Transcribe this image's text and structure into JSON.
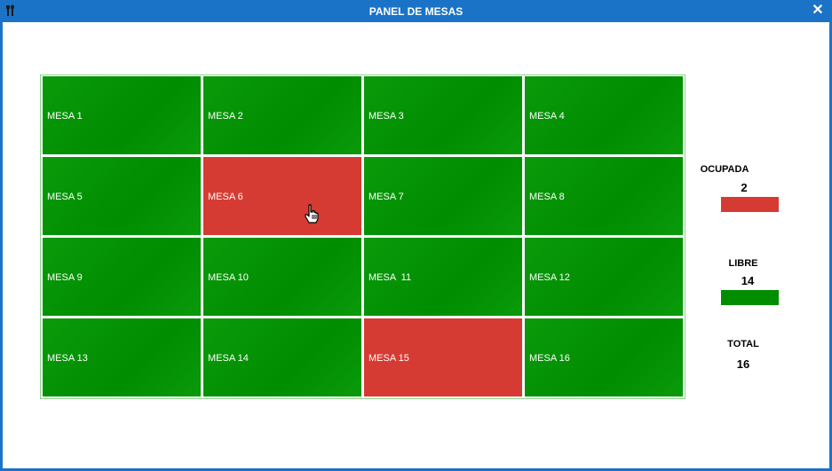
{
  "window": {
    "title": "PANEL DE MESAS",
    "app_icon": "cutlery-icon",
    "close_glyph": "✕"
  },
  "mesas": [
    {
      "label": "MESA 1",
      "status": "libre"
    },
    {
      "label": "MESA 2",
      "status": "libre"
    },
    {
      "label": "MESA 3",
      "status": "libre"
    },
    {
      "label": "MESA 4",
      "status": "libre"
    },
    {
      "label": "MESA 5",
      "status": "libre"
    },
    {
      "label": "MESA 6",
      "status": "ocupada"
    },
    {
      "label": "MESA 7",
      "status": "libre"
    },
    {
      "label": "MESA 8",
      "status": "libre"
    },
    {
      "label": "MESA 9",
      "status": "libre"
    },
    {
      "label": "MESA 10",
      "status": "libre"
    },
    {
      "label": "MESA  11",
      "status": "libre"
    },
    {
      "label": "MESA 12",
      "status": "libre"
    },
    {
      "label": "MESA 13",
      "status": "libre"
    },
    {
      "label": "MESA 14",
      "status": "libre"
    },
    {
      "label": "MESA 15",
      "status": "ocupada"
    },
    {
      "label": "MESA 16",
      "status": "libre"
    }
  ],
  "legend": {
    "ocupada": {
      "label": "OCUPADA",
      "count": "2",
      "color": "#d63b33"
    },
    "libre": {
      "label": "LIBRE",
      "count": "14",
      "color": "#008d00"
    },
    "total": {
      "label": "TOTAL",
      "count": "16"
    }
  }
}
